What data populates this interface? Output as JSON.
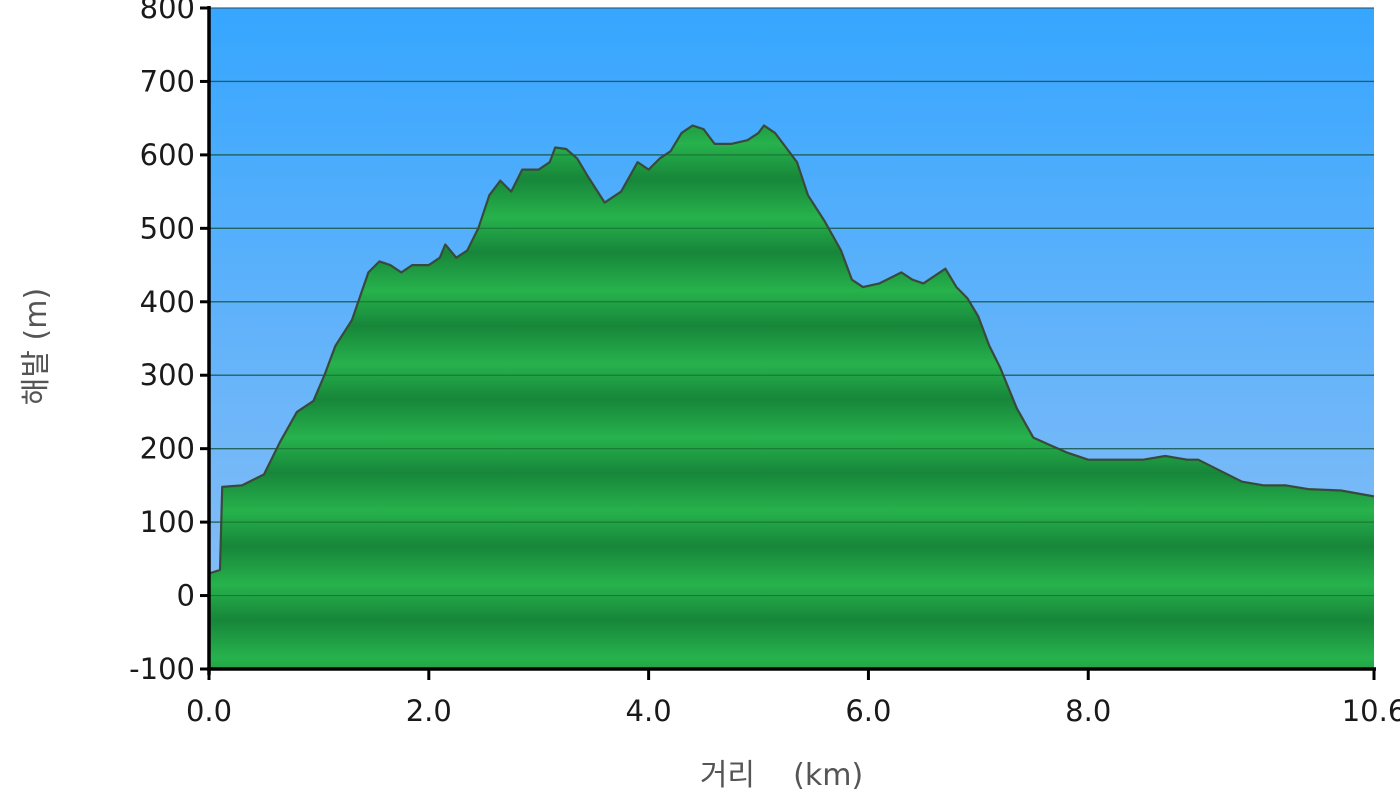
{
  "chart_data": {
    "type": "area",
    "title": "",
    "xlabel": "거리    (km)",
    "ylabel": "해발 (m)",
    "xlim": [
      0,
      10.6
    ],
    "ylim": [
      -100,
      800
    ],
    "x_ticks": [
      "0.0",
      "2.0",
      "4.0",
      "6.0",
      "8.0",
      "10.6"
    ],
    "x_tick_values": [
      0,
      2,
      4,
      6,
      8,
      10.6
    ],
    "y_ticks": [
      "800",
      "700",
      "600",
      "500",
      "400",
      "300",
      "200",
      "100",
      "0",
      "-100"
    ],
    "y_tick_values": [
      800,
      700,
      600,
      500,
      400,
      300,
      200,
      100,
      0,
      -100
    ],
    "grid": true,
    "legend": "none",
    "colors": {
      "sky_top": "#36a6ff",
      "sky_bottom": "#8fc0f5",
      "fill_light": "#27b24c",
      "fill_dark": "#17863a",
      "outline": "#3a4a3a",
      "grid": "#2a5a7a"
    },
    "series": [
      {
        "x": [
          0,
          0.1,
          0.12,
          0.3,
          0.5,
          0.65,
          0.8,
          0.95,
          1.05,
          1.15,
          1.3,
          1.45,
          1.55,
          1.65,
          1.75,
          1.85,
          2.0,
          2.1,
          2.15,
          2.25,
          2.35,
          2.45,
          2.55,
          2.65,
          2.75,
          2.85,
          3.0,
          3.1,
          3.15,
          3.25,
          3.35,
          3.45,
          3.6,
          3.75,
          3.9,
          4.0,
          4.1,
          4.2,
          4.3,
          4.4,
          4.5,
          4.6,
          4.75,
          4.9,
          5.0,
          5.05,
          5.15,
          5.25,
          5.35,
          5.45,
          5.6,
          5.75,
          5.85,
          5.95,
          6.1,
          6.3,
          6.4,
          6.5,
          6.6,
          6.7,
          6.8,
          6.9,
          7.0,
          7.1,
          7.2,
          7.35,
          7.5,
          7.65,
          7.8,
          8.0,
          8.2,
          8.5,
          8.7,
          8.9,
          9.0,
          9.2,
          9.4,
          9.6,
          9.8,
          10.0,
          10.3,
          10.6
        ],
        "y": [
          30,
          35,
          148,
          150,
          165,
          210,
          250,
          265,
          300,
          340,
          375,
          440,
          455,
          450,
          440,
          450,
          450,
          460,
          478,
          460,
          470,
          500,
          545,
          565,
          550,
          580,
          580,
          590,
          610,
          608,
          595,
          570,
          535,
          550,
          590,
          580,
          595,
          605,
          630,
          640,
          635,
          615,
          615,
          620,
          630,
          640,
          630,
          610,
          590,
          545,
          510,
          470,
          430,
          420,
          425,
          440,
          430,
          425,
          435,
          445,
          420,
          405,
          380,
          340,
          310,
          255,
          215,
          205,
          195,
          185,
          185,
          185,
          190,
          185,
          185,
          170,
          155,
          150,
          150,
          145,
          143,
          135
        ]
      }
    ]
  }
}
